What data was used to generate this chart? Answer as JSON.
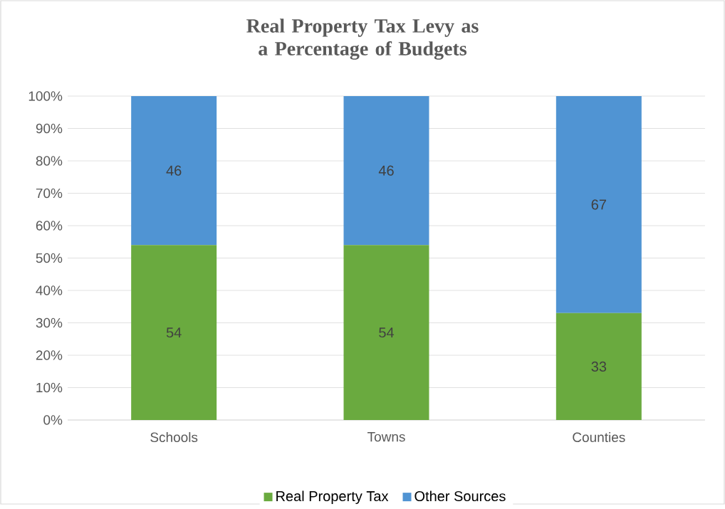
{
  "chart_data": {
    "type": "bar",
    "title": "Real Property Tax Levy as a Percentage of Budgets",
    "categories": [
      "Schools",
      "Towns",
      "Counties"
    ],
    "stacked": true,
    "series": [
      {
        "name": "Real Property Tax",
        "color": "#6aaa3f",
        "values": [
          54,
          54,
          33
        ]
      },
      {
        "name": "Other Sources",
        "color": "#5094d3",
        "values": [
          46,
          46,
          67
        ]
      }
    ],
    "ylim": [
      0,
      100
    ],
    "yticks": [
      {
        "value": 0,
        "label": "0%"
      },
      {
        "value": 10,
        "label": "10%"
      },
      {
        "value": 20,
        "label": "20%"
      },
      {
        "value": 30,
        "label": "30%"
      },
      {
        "value": 40,
        "label": "40%"
      },
      {
        "value": 50,
        "label": "50%"
      },
      {
        "value": 60,
        "label": "60%"
      },
      {
        "value": 70,
        "label": "70%"
      },
      {
        "value": 80,
        "label": "80%"
      },
      {
        "value": 90,
        "label": "90%"
      },
      {
        "value": 100,
        "label": "100%"
      }
    ],
    "grid": "y",
    "legend": "bottom",
    "data_labels": true
  }
}
